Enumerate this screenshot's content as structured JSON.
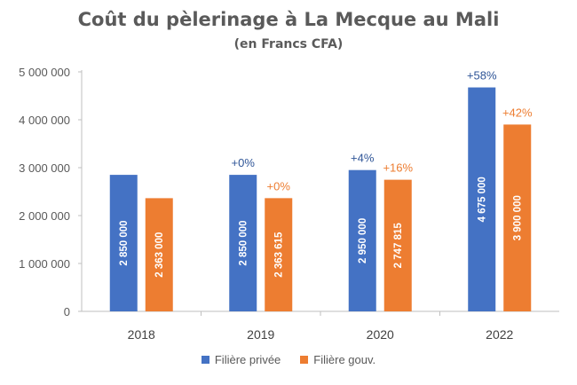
{
  "chart_data": {
    "type": "bar",
    "title": "Coût du pèlerinage à La Mecque au Mali",
    "subtitle": "(en Francs CFA)",
    "categories": [
      "2018",
      "2019",
      "2020",
      "2022"
    ],
    "ylim": [
      0,
      5000000
    ],
    "yticks": [
      "0",
      "1 000 000",
      "2 000 000",
      "3 000 000",
      "4 000 000",
      "5 000 000"
    ],
    "legend_position": "bottom",
    "series": [
      {
        "name": "Filière privée",
        "color": "#4472c4",
        "values": [
          2850000,
          2850000,
          2950000,
          4675000
        ],
        "value_labels": [
          "2 850 000",
          "2 850 000",
          "2 950 000",
          "4 675 000"
        ],
        "change_labels": [
          "",
          "+0%",
          "+4%",
          "+58%"
        ]
      },
      {
        "name": "Filière gouv.",
        "color": "#ed7d31",
        "values": [
          2363000,
          2363615,
          2747815,
          3900000
        ],
        "value_labels": [
          "2 363 000",
          "2 363 615",
          "2 747 815",
          "3 900 000"
        ],
        "change_labels": [
          "",
          "+0%",
          "+16%",
          "+42%"
        ]
      }
    ]
  }
}
